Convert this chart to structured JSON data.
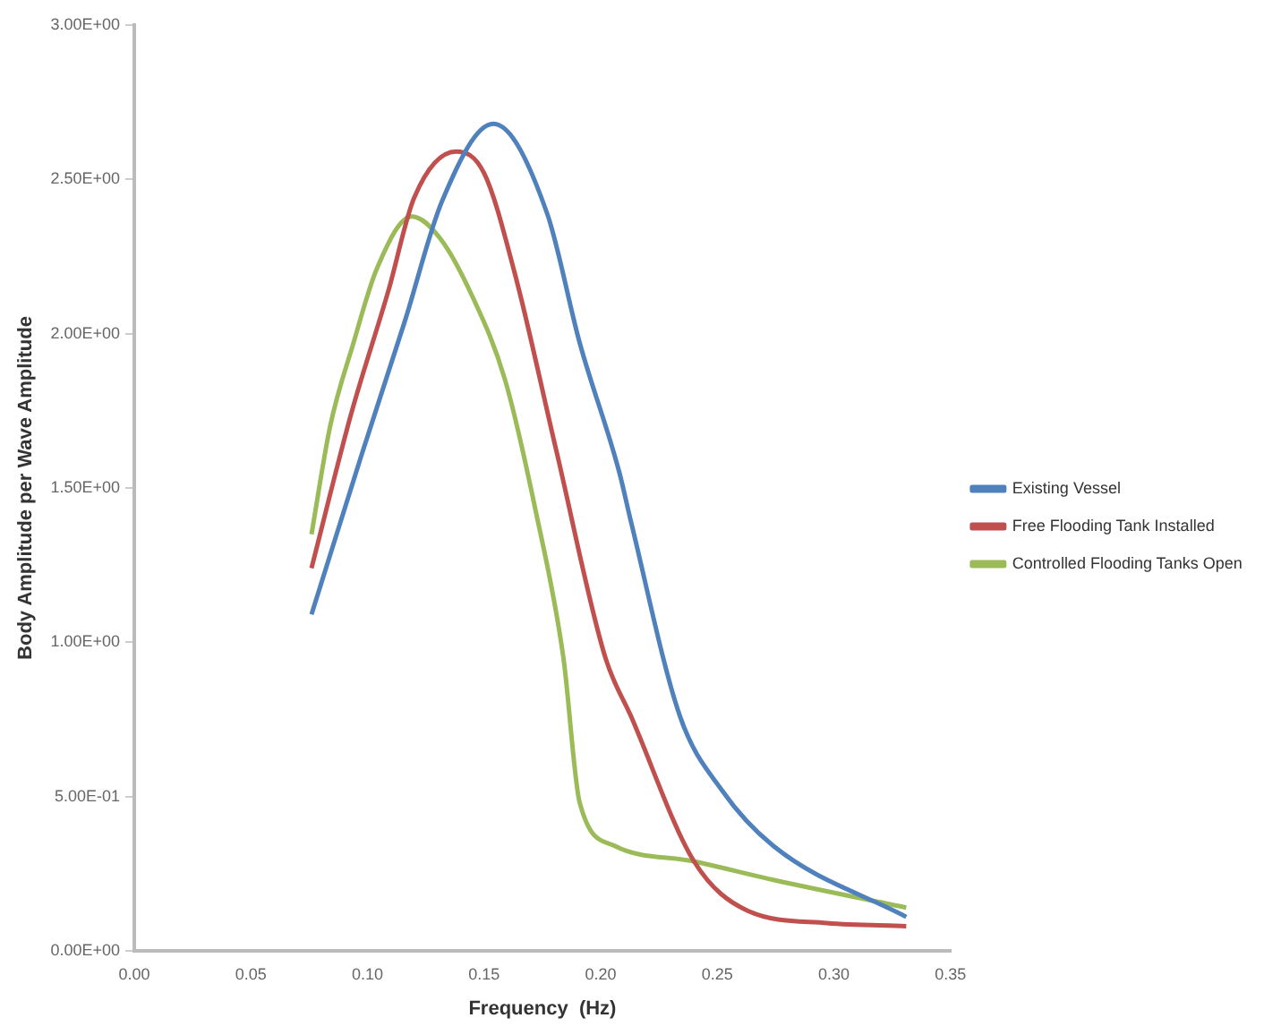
{
  "chart_data": {
    "type": "line",
    "xlabel": "Frequency  (Hz)",
    "ylabel": "Body Amplitude per Wave Amplitude",
    "xlim": [
      0,
      0.35
    ],
    "xticks": [
      {
        "value": 0,
        "label": "0.00"
      },
      {
        "value": 0.05,
        "label": "0.05"
      },
      {
        "value": 0.1,
        "label": "0.10"
      },
      {
        "value": 0.15,
        "label": "0.15"
      },
      {
        "value": 0.2,
        "label": "0.20"
      },
      {
        "value": 0.25,
        "label": "0.25"
      },
      {
        "value": 0.3,
        "label": "0.30"
      },
      {
        "value": 0.35,
        "label": "0.35"
      }
    ],
    "ylim": [
      0,
      3
    ],
    "yticks": [
      {
        "value": 0,
        "label": "0.00E+00"
      },
      {
        "value": 0.5,
        "label": "5.00E-01"
      },
      {
        "value": 1,
        "label": "1.00E+00"
      },
      {
        "value": 1.5,
        "label": "1.50E+00"
      },
      {
        "value": 2,
        "label": "2.00E+00"
      },
      {
        "value": 2.5,
        "label": "2.50E+00"
      },
      {
        "value": 3,
        "label": "3.00E+00"
      }
    ],
    "grid": false,
    "legend": "right",
    "marker": "none",
    "line_style": "solid",
    "series": [
      {
        "name": "Existing Vessel",
        "color": "#4f81bd",
        "x": [
          0.076,
          0.098,
          0.116,
          0.132,
          0.154,
          0.177,
          0.191,
          0.208,
          0.213,
          0.234,
          0.252,
          0.274,
          0.331
        ],
        "values": [
          1.09,
          1.62,
          2.04,
          2.43,
          2.68,
          2.39,
          1.97,
          1.55,
          1.39,
          0.76,
          0.52,
          0.34,
          0.11
        ]
      },
      {
        "name": "Free Flooding Tank Installed",
        "color": "#c0504d",
        "x": [
          0.076,
          0.093,
          0.109,
          0.12,
          0.138,
          0.15,
          0.163,
          0.181,
          0.202,
          0.213,
          0.24,
          0.263,
          0.297,
          0.331
        ],
        "values": [
          1.24,
          1.74,
          2.14,
          2.44,
          2.59,
          2.52,
          2.2,
          1.62,
          0.95,
          0.76,
          0.29,
          0.13,
          0.09,
          0.08
        ]
      },
      {
        "name": "Controlled Flooding Tanks Open",
        "color": "#9bbb59",
        "x": [
          0.076,
          0.084,
          0.094,
          0.104,
          0.119,
          0.131,
          0.145,
          0.159,
          0.172,
          0.184,
          0.191,
          0.206,
          0.24,
          0.274,
          0.331
        ],
        "values": [
          1.35,
          1.7,
          1.97,
          2.21,
          2.38,
          2.31,
          2.12,
          1.85,
          1.43,
          0.95,
          0.48,
          0.34,
          0.29,
          0.23,
          0.14
        ]
      }
    ]
  }
}
